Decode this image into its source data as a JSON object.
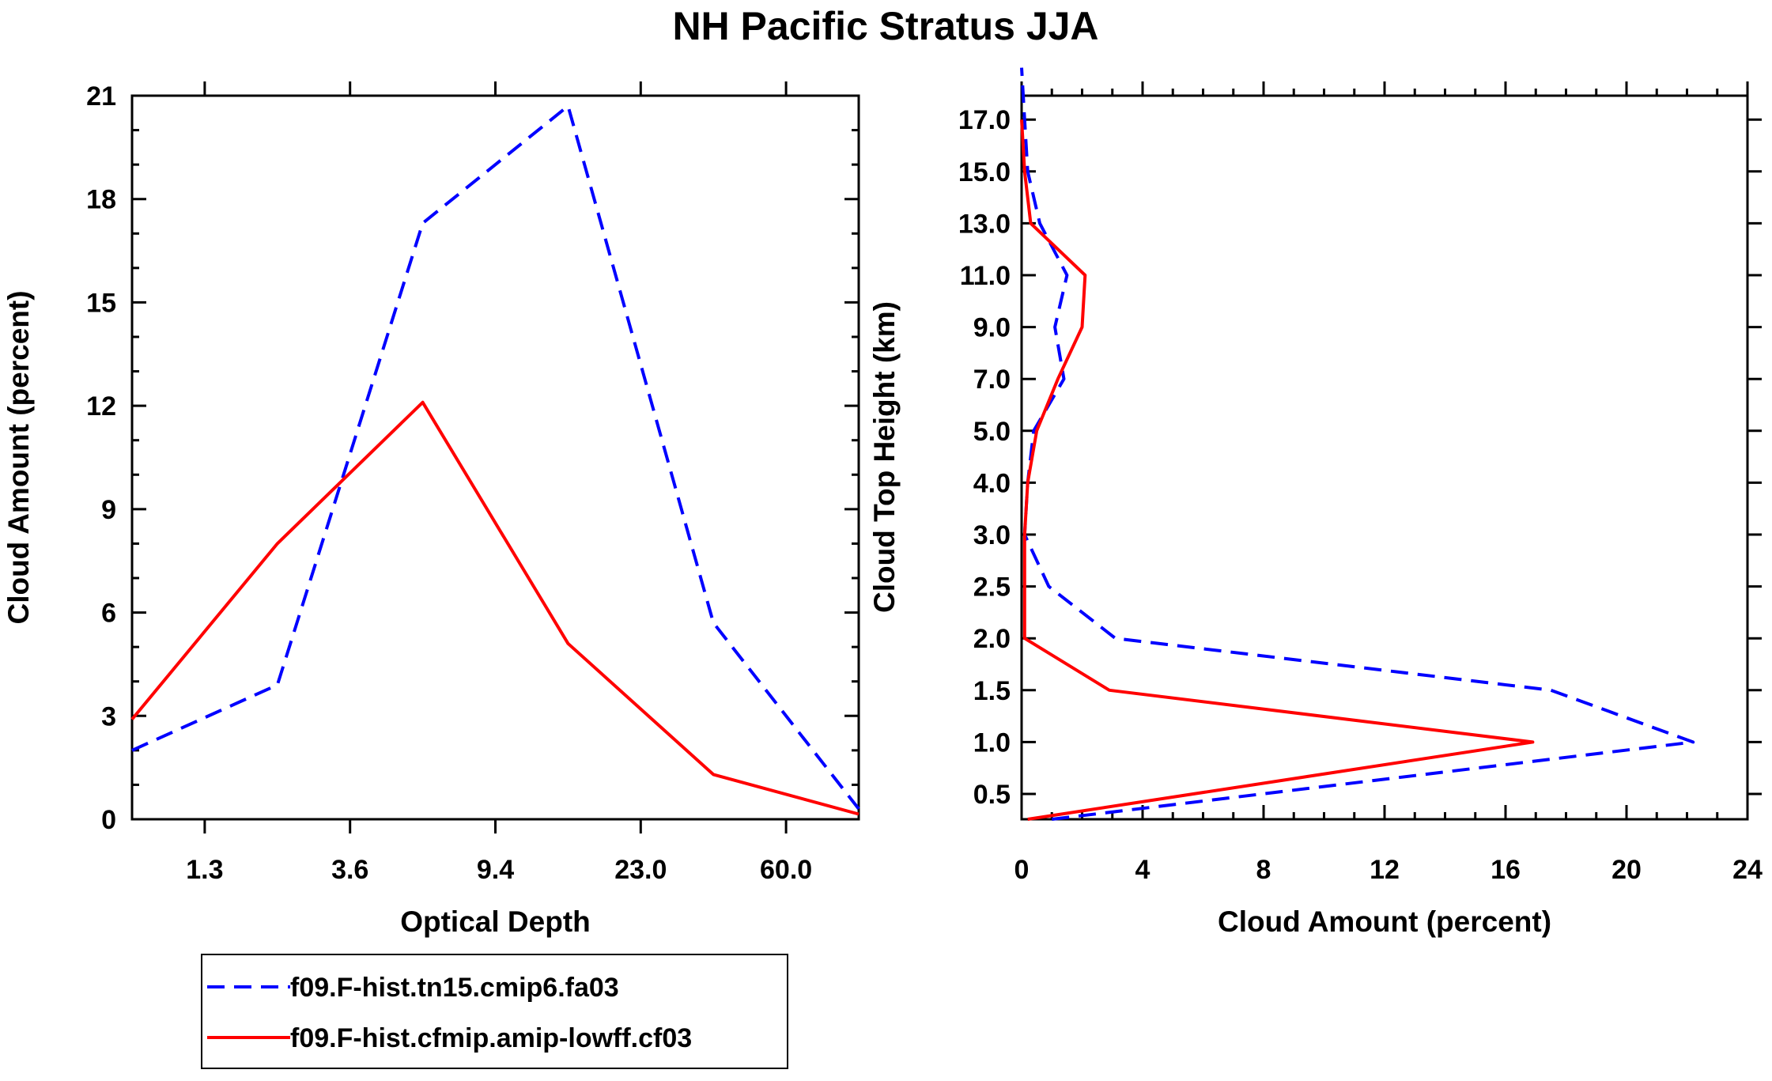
{
  "title": "NH Pacific Stratus JJA",
  "colors": {
    "series_1": "#0000ff",
    "series_2": "#ff0000"
  },
  "chart_data": [
    {
      "type": "line",
      "xlabel": "Optical Depth",
      "ylabel": "Cloud Amount (percent)",
      "x_tick_labels": [
        "1.3",
        "3.6",
        "9.4",
        "23.0",
        "60.0"
      ],
      "y_ticks": [
        0,
        3,
        6,
        9,
        12,
        15,
        18,
        21
      ],
      "ylim": [
        0,
        21
      ],
      "grid": false,
      "series": [
        {
          "name": "f09.F-hist.tn15.cmip6.fa03",
          "style": "dashed",
          "values": [
            2.0,
            3.9,
            17.3,
            20.7,
            5.7,
            0.3
          ]
        },
        {
          "name": "f09.F-hist.cfmip.amip-lowff.cf03",
          "style": "solid",
          "values": [
            2.9,
            8.0,
            12.1,
            5.1,
            1.3,
            0.15
          ]
        }
      ]
    },
    {
      "type": "line",
      "xlabel": "Cloud Amount (percent)",
      "ylabel": "Cloud Top Height (km)",
      "x_ticks": [
        0,
        4,
        8,
        12,
        16,
        20,
        24
      ],
      "xlim": [
        0,
        24
      ],
      "y_tick_labels": [
        "0.5",
        "1.0",
        "1.5",
        "2.0",
        "2.5",
        "3.0",
        "4.0",
        "5.0",
        "7.0",
        "9.0",
        "11.0",
        "13.0",
        "15.0",
        "17.0"
      ],
      "grid": false,
      "series": [
        {
          "name": "f09.F-hist.tn15.cmip6.fa03",
          "style": "dashed",
          "levels": [
            0,
            1,
            2,
            3,
            4,
            5,
            6,
            7,
            8,
            9,
            10,
            11,
            12,
            13,
            14
          ],
          "values": [
            1.0,
            22.2,
            17.5,
            3.1,
            0.9,
            0.1,
            0.2,
            0.4,
            1.4,
            1.1,
            1.5,
            0.6,
            0.2,
            0.1,
            0.0
          ]
        },
        {
          "name": "f09.F-hist.cfmip.amip-lowff.cf03",
          "style": "solid",
          "levels": [
            0,
            1,
            2,
            3,
            4,
            5,
            6,
            7,
            8,
            9,
            10,
            11,
            12,
            13
          ],
          "values": [
            0.2,
            16.9,
            2.9,
            0.1,
            0.1,
            0.1,
            0.2,
            0.5,
            1.2,
            2.0,
            2.1,
            0.3,
            0.1,
            0.0
          ]
        }
      ]
    }
  ],
  "legend": [
    {
      "label": "f09.F-hist.tn15.cmip6.fa03",
      "style": "dashed"
    },
    {
      "label": "f09.F-hist.cfmip.amip-lowff.cf03",
      "style": "solid"
    }
  ]
}
